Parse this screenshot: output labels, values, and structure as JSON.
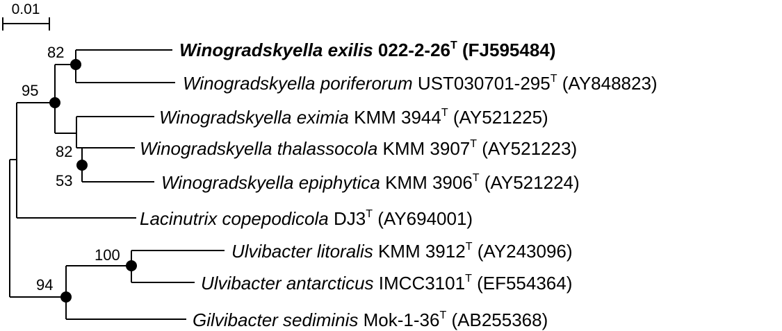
{
  "scale": {
    "label": "0.01"
  },
  "taxa": [
    {
      "genus": "Winogradskyella exilis",
      "strain": "022-2-26",
      "type_mark": "T",
      "accession": "(FJ595484)",
      "bold": true
    },
    {
      "genus": "Winogradskyella poriferorum",
      "strain": "UST030701-295",
      "type_mark": "T",
      "accession": "(AY848823)",
      "bold": false
    },
    {
      "genus": "Winogradskyella eximia",
      "strain": "KMM 3944",
      "type_mark": "T",
      "accession": "(AY521225)",
      "bold": false
    },
    {
      "genus": "Winogradskyella thalassocola",
      "strain": "KMM 3907",
      "type_mark": "T",
      "accession": "(AY521223)",
      "bold": false
    },
    {
      "genus": "Winogradskyella epiphytica",
      "strain": "KMM 3906",
      "type_mark": "T",
      "accession": "(AY521224)",
      "bold": false
    },
    {
      "genus": "Lacinutrix copepodicola",
      "strain": "DJ3",
      "type_mark": "T",
      "accession": "(AY694001)",
      "bold": false
    },
    {
      "genus": "Ulvibacter litoralis",
      "strain": "KMM 3912",
      "type_mark": "T",
      "accession": "(AY243096)",
      "bold": false
    },
    {
      "genus": "Ulvibacter antarcticus",
      "strain": "IMCC3101",
      "type_mark": "T",
      "accession": "(EF554364)",
      "bold": false
    },
    {
      "genus": "Gilvibacter sediminis",
      "strain": "Mok-1-36",
      "type_mark": "T",
      "accession": "(AB255368)",
      "bold": false
    }
  ],
  "bootstrap": [
    "82",
    "95",
    "82",
    "53",
    "100",
    "94"
  ]
}
